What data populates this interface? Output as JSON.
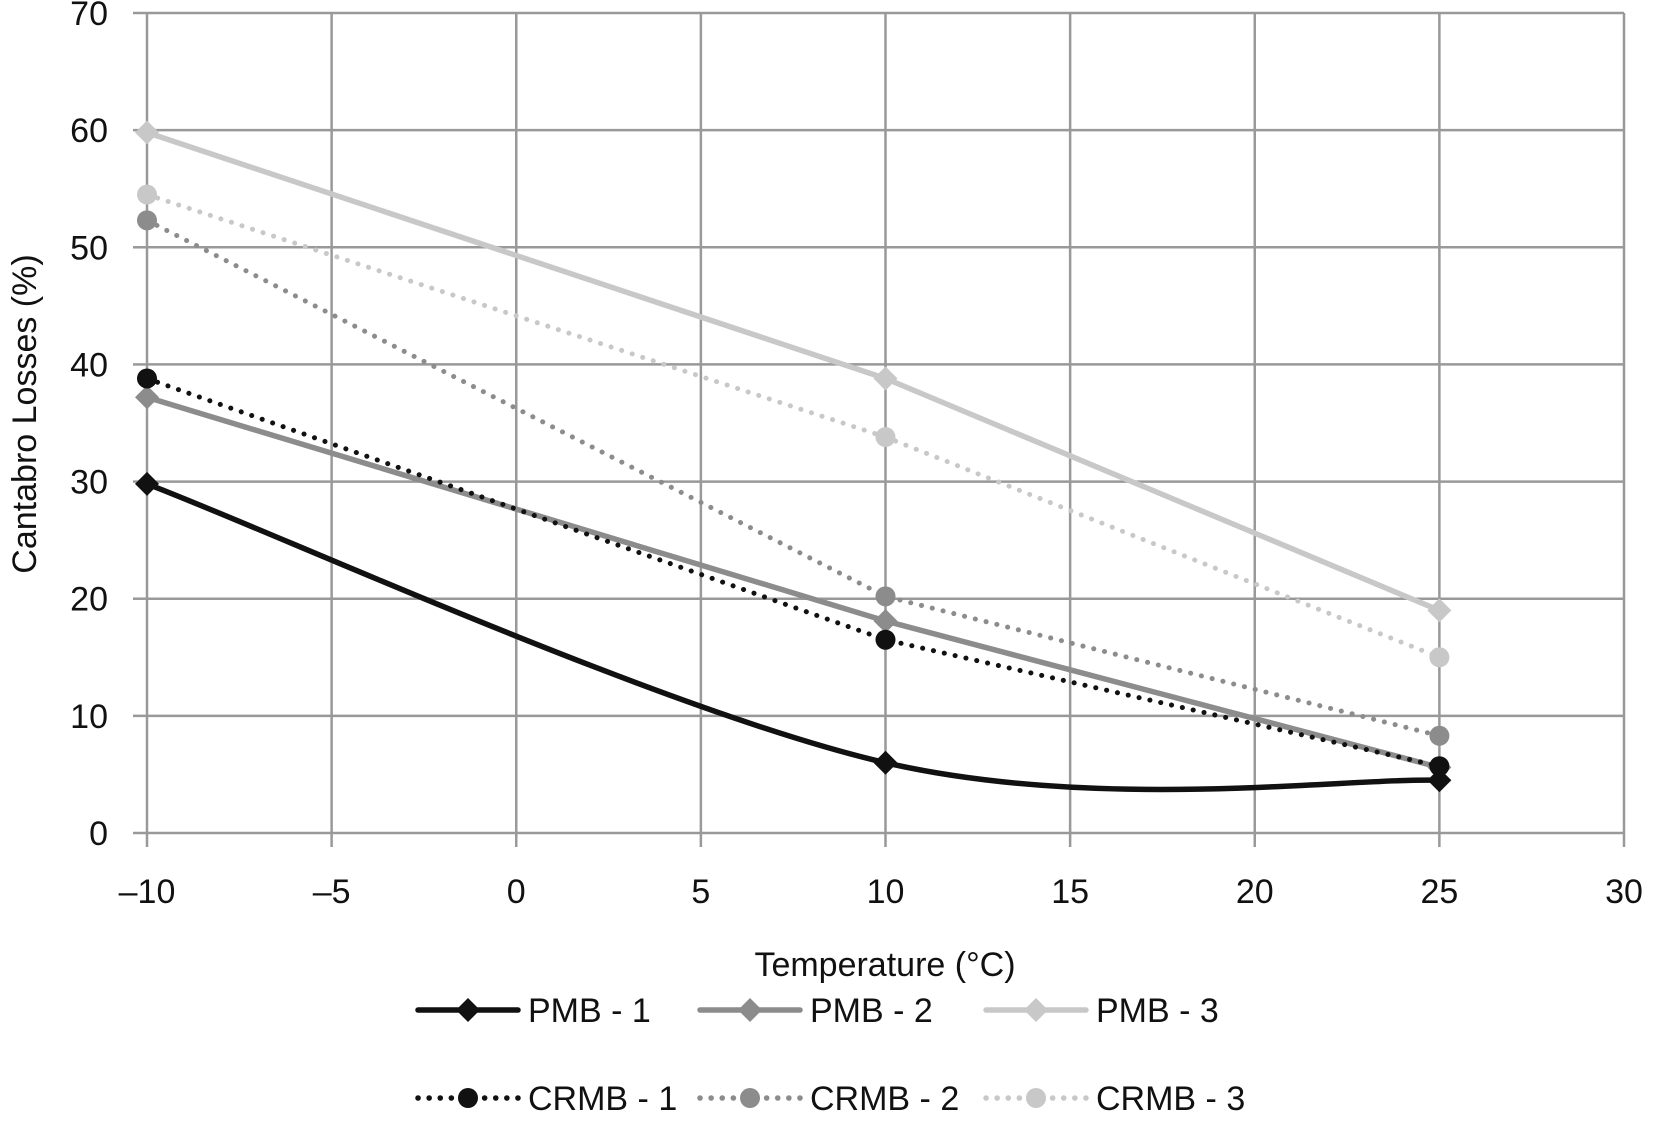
{
  "chart_data": {
    "type": "line",
    "xlabel": "Temperature (°C)",
    "ylabel": "Cantabro Losses (%)",
    "xlim": [
      -10,
      30
    ],
    "ylim": [
      0,
      70
    ],
    "x_ticks": [
      -10,
      -5,
      0,
      5,
      10,
      15,
      20,
      25,
      30
    ],
    "x_tick_labels": [
      "–10",
      "–5",
      "0",
      "5",
      "10",
      "15",
      "20",
      "25",
      "30"
    ],
    "y_ticks": [
      0,
      10,
      20,
      30,
      40,
      50,
      60,
      70
    ],
    "y_tick_labels": [
      "0",
      "10",
      "20",
      "30",
      "40",
      "50",
      "60",
      "70"
    ],
    "grid": true,
    "legend_position": "bottom",
    "x": [
      -10,
      10,
      25
    ],
    "series": [
      {
        "name": "PMB - 1",
        "values": [
          29.8,
          6.0,
          4.5
        ],
        "color": "#111111",
        "dash": "solid",
        "marker": "diamond",
        "smooth": true
      },
      {
        "name": "PMB - 2",
        "values": [
          37.2,
          18.1,
          5.6
        ],
        "color": "#8c8c8c",
        "dash": "solid",
        "marker": "diamond",
        "smooth": false
      },
      {
        "name": "PMB - 3",
        "values": [
          59.8,
          38.8,
          19.0
        ],
        "color": "#c8c8c8",
        "dash": "solid",
        "marker": "diamond",
        "smooth": false
      },
      {
        "name": "CRMB - 1",
        "values": [
          38.8,
          16.5,
          5.7
        ],
        "color": "#111111",
        "dash": "dotted",
        "marker": "circle",
        "smooth": false
      },
      {
        "name": "CRMB - 2",
        "values": [
          52.3,
          20.2,
          8.3
        ],
        "color": "#8c8c8c",
        "dash": "dotted",
        "marker": "circle",
        "smooth": false
      },
      {
        "name": "CRMB - 3",
        "values": [
          54.5,
          33.8,
          15.0
        ],
        "color": "#c8c8c8",
        "dash": "dotted",
        "marker": "circle",
        "smooth": false
      }
    ]
  }
}
